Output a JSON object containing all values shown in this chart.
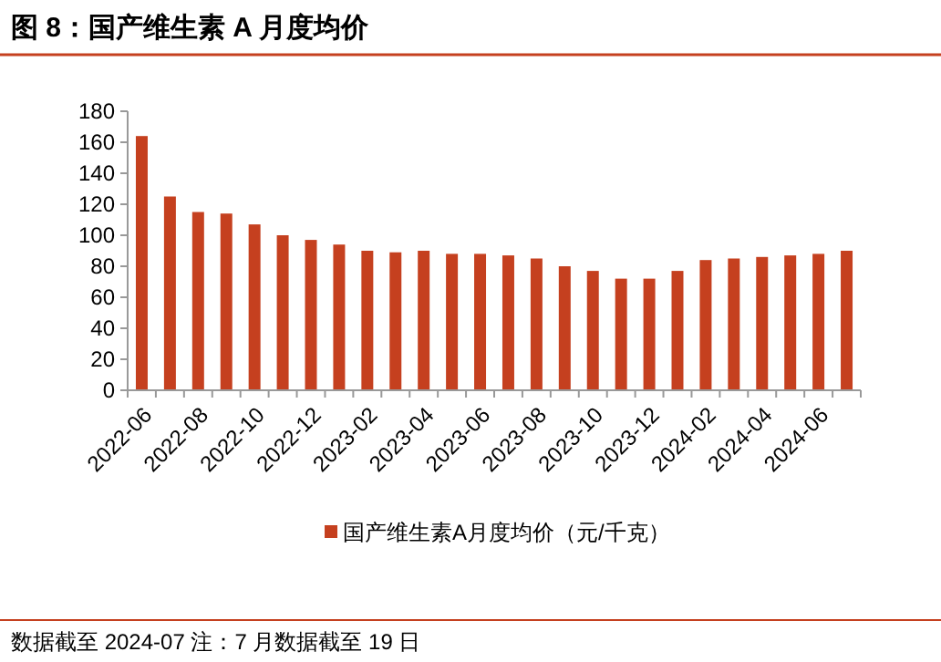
{
  "chart_data": {
    "type": "bar",
    "title": "图 8：国产维生素 A 月度均价",
    "categories": [
      "2022-06",
      null,
      "2022-08",
      null,
      "2022-10",
      null,
      "2022-12",
      null,
      "2023-02",
      null,
      "2023-04",
      null,
      "2023-06",
      null,
      "2023-08",
      null,
      "2023-10",
      null,
      "2023-12",
      null,
      "2024-02",
      null,
      "2024-04",
      null,
      "2024-06",
      null
    ],
    "series": [
      {
        "name": "国产维生素A月度均价（元/千克）",
        "color": "#c5401f",
        "values": [
          164,
          125,
          115,
          114,
          107,
          100,
          97,
          94,
          90,
          89,
          90,
          88,
          88,
          87,
          85,
          80,
          77,
          72,
          72,
          77,
          84,
          85,
          86,
          87,
          88,
          90
        ]
      }
    ],
    "ylim": [
      0,
      180
    ],
    "yticks": [
      0,
      20,
      40,
      60,
      80,
      100,
      120,
      140,
      160,
      180
    ],
    "legend": "bottom",
    "annotations": [
      "数据截至 2024-07 注：7 月数据截至 19 日"
    ]
  }
}
